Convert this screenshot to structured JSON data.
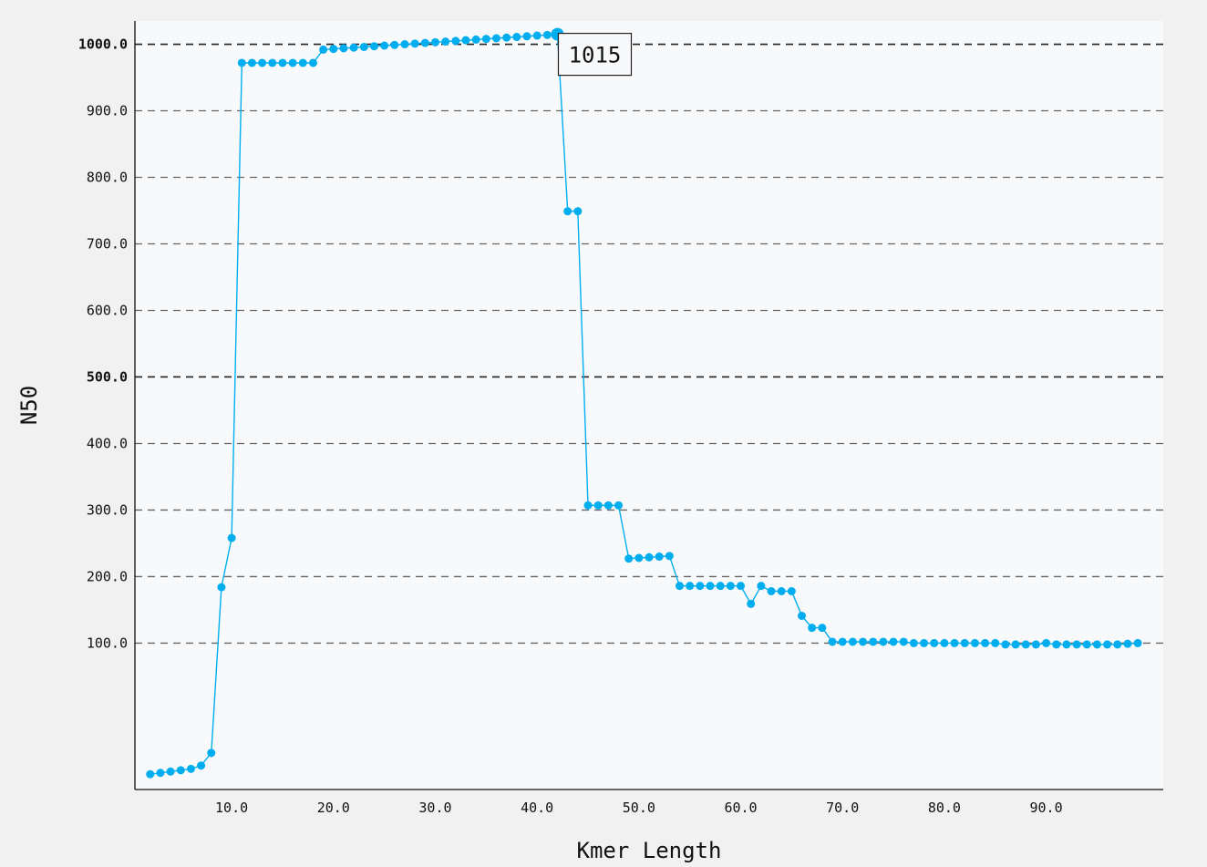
{
  "chart_data": {
    "type": "line",
    "title": "",
    "xlabel": "Kmer Length",
    "ylabel": "N50",
    "xlim": [
      0.5,
      101.5
    ],
    "ylim": [
      -120,
      1035
    ],
    "x_ticks": [
      "10.0",
      "20.0",
      "30.0",
      "40.0",
      "50.0",
      "60.0",
      "70.0",
      "80.0",
      "90.0"
    ],
    "y_ticks": [
      "100.0",
      "200.0",
      "300.0",
      "400.0",
      "500.0",
      "600.0",
      "700.0",
      "800.0",
      "900.0",
      "1000.0"
    ],
    "reference_lines": [
      500,
      1000
    ],
    "grid": "horizontal dashed",
    "series": [
      {
        "color": "#00aeef",
        "x": [
          2,
          3,
          4,
          5,
          6,
          7,
          8,
          9,
          10,
          11,
          12,
          13,
          14,
          15,
          16,
          17,
          18,
          19,
          20,
          21,
          22,
          23,
          24,
          25,
          26,
          27,
          28,
          29,
          30,
          31,
          32,
          33,
          34,
          35,
          36,
          37,
          38,
          39,
          40,
          41,
          42,
          43,
          44,
          45,
          46,
          47,
          48,
          49,
          50,
          51,
          52,
          53,
          54,
          55,
          56,
          57,
          58,
          59,
          60,
          61,
          62,
          63,
          64,
          65,
          66,
          67,
          68,
          69,
          70,
          71,
          72,
          73,
          74,
          75,
          76,
          77,
          78,
          79,
          80,
          81,
          82,
          83,
          84,
          85,
          86,
          87,
          88,
          89,
          90,
          91,
          92,
          93,
          94,
          95,
          96,
          97,
          98,
          99
        ],
        "y": [
          -97,
          -95,
          -93,
          -91,
          -89,
          -84,
          -65,
          184,
          258,
          972,
          972,
          972,
          972,
          972,
          972,
          972,
          972,
          992,
          993,
          994,
          995,
          996,
          997,
          998,
          999,
          1000,
          1001,
          1002,
          1003,
          1004,
          1005,
          1006,
          1007,
          1008,
          1009,
          1010,
          1011,
          1012,
          1013,
          1014,
          1015,
          749,
          749,
          307,
          307,
          307,
          307,
          227,
          228,
          229,
          230,
          231,
          186,
          186,
          186,
          186,
          186,
          186,
          186,
          159,
          186,
          178,
          178,
          178,
          141,
          123,
          123,
          102,
          102,
          102,
          102,
          102,
          102,
          102,
          102,
          100,
          100,
          100,
          100,
          100,
          100,
          100,
          100,
          100,
          98,
          98,
          98,
          98,
          100,
          98,
          98,
          98,
          98,
          98,
          98,
          98,
          99,
          100
        ]
      }
    ],
    "annotation": {
      "text": "1015",
      "x": 42,
      "y": 1015
    }
  }
}
